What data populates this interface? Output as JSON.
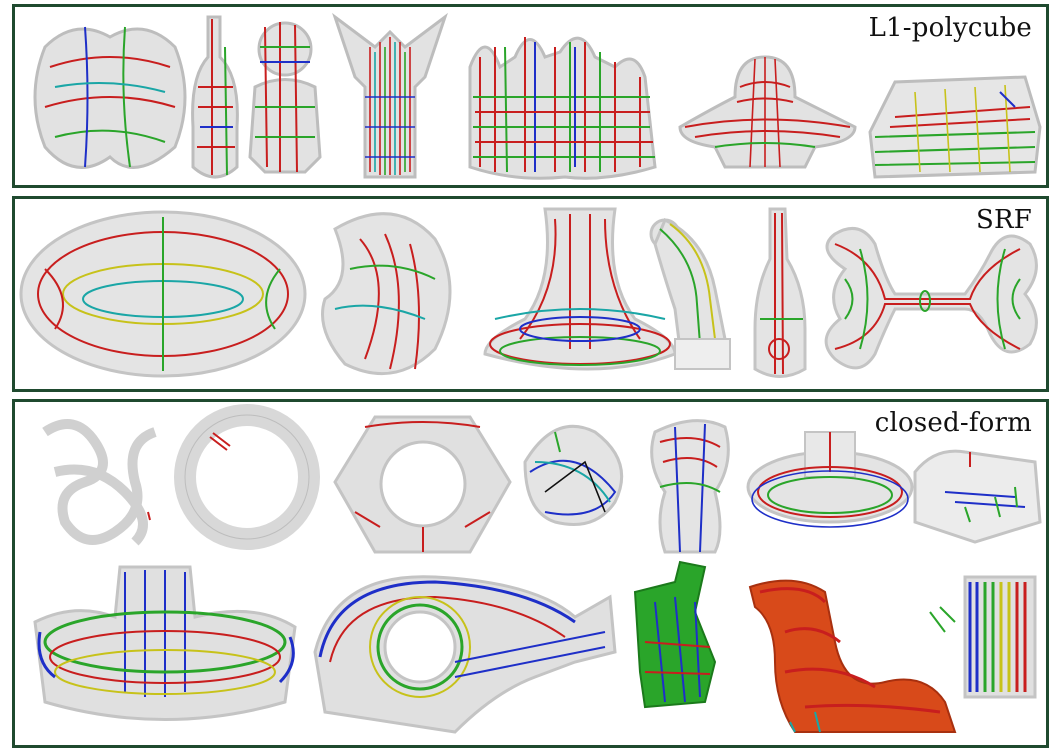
{
  "panels": [
    {
      "label": "L1-polycube"
    },
    {
      "label": "SRF"
    },
    {
      "label": "closed-form"
    }
  ],
  "colors": {
    "frame": "#1f4a2f",
    "red": "#c81e1e",
    "green": "#2aa52a",
    "blue": "#1e2fc8",
    "teal": "#1aa6a6",
    "yellow": "#c7c21a",
    "shell": "#d9d9d9"
  },
  "icons": [
    "shape-thumbnail"
  ]
}
